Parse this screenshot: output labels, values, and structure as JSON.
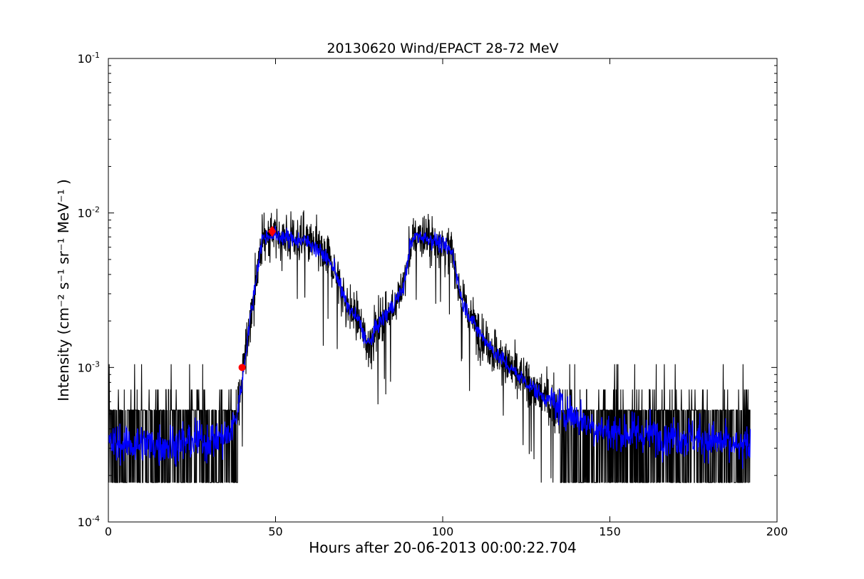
{
  "chart_data": {
    "type": "line",
    "title": "20130620 Wind/EPACT 28-72 MeV",
    "xlabel": "Hours after 20-06-2013 00:00:22.704",
    "ylabel": "Intensity (cm⁻² s⁻¹ sr⁻¹ MeV⁻¹ )",
    "xlim": [
      0,
      200
    ],
    "ylim": [
      0.0001,
      0.1
    ],
    "yscale": "log",
    "x_ticks": [
      {
        "value": 0,
        "label": "0"
      },
      {
        "value": 50,
        "label": "50"
      },
      {
        "value": 100,
        "label": "100"
      },
      {
        "value": 150,
        "label": "150"
      },
      {
        "value": 200,
        "label": "200"
      }
    ],
    "y_ticks": [
      {
        "value": 0.0001,
        "base": "10",
        "exp": "-4"
      },
      {
        "value": 0.001,
        "base": "10",
        "exp": "-3"
      },
      {
        "value": 0.01,
        "base": "10",
        "exp": "-2"
      },
      {
        "value": 0.1,
        "base": "10",
        "exp": "-1"
      }
    ],
    "grid": false,
    "series": [
      {
        "color": "#000000",
        "style": "noisy raw intensity",
        "x": [
          0,
          10,
          20,
          24,
          30,
          36,
          38,
          40,
          41,
          42,
          43,
          44,
          45,
          46,
          48,
          50,
          55,
          60,
          65,
          68,
          70,
          72,
          75,
          77,
          78,
          80,
          83,
          85,
          88,
          89,
          90,
          92,
          95,
          98,
          100,
          103,
          104,
          105,
          106,
          108,
          110,
          115,
          120,
          125,
          130,
          135,
          140,
          145,
          150,
          160,
          170,
          180,
          185,
          188,
          190,
          192
        ],
        "y": [
          0.00032,
          0.00032,
          0.00032,
          0.00033,
          0.00034,
          0.00036,
          0.00045,
          0.0008,
          0.0012,
          0.0018,
          0.0025,
          0.0035,
          0.005,
          0.0068,
          0.0072,
          0.0072,
          0.0068,
          0.0065,
          0.0052,
          0.0042,
          0.003,
          0.0024,
          0.002,
          0.0015,
          0.0014,
          0.0018,
          0.0022,
          0.0025,
          0.0032,
          0.004,
          0.0058,
          0.0072,
          0.0069,
          0.0066,
          0.0062,
          0.0055,
          0.0042,
          0.0032,
          0.0026,
          0.0022,
          0.0018,
          0.0013,
          0.001,
          0.0008,
          0.00065,
          0.00055,
          0.00048,
          0.00042,
          0.00038,
          0.00037,
          0.00036,
          0.00034,
          0.00032,
          0.0003,
          0.0003,
          0.00031
        ]
      },
      {
        "color": "#0000ff",
        "style": "smoothed intensity",
        "x": [
          0,
          10,
          20,
          24,
          30,
          36,
          38,
          40,
          41,
          42,
          43,
          44,
          45,
          46,
          48,
          50,
          55,
          60,
          65,
          68,
          70,
          72,
          75,
          77,
          78,
          80,
          83,
          85,
          88,
          89,
          90,
          92,
          95,
          98,
          100,
          103,
          104,
          105,
          106,
          108,
          110,
          115,
          120,
          125,
          130,
          135,
          140,
          145,
          150,
          160,
          170,
          180,
          185,
          188,
          190,
          192
        ],
        "y": [
          0.00032,
          0.00032,
          0.00032,
          0.00033,
          0.00034,
          0.00036,
          0.00045,
          0.0008,
          0.0012,
          0.0018,
          0.0025,
          0.0035,
          0.005,
          0.0068,
          0.0072,
          0.0072,
          0.0068,
          0.0065,
          0.0052,
          0.0042,
          0.003,
          0.0024,
          0.002,
          0.0015,
          0.0014,
          0.0018,
          0.0022,
          0.0025,
          0.0032,
          0.004,
          0.0058,
          0.0072,
          0.0069,
          0.0066,
          0.0062,
          0.0055,
          0.0042,
          0.0032,
          0.0026,
          0.0022,
          0.0018,
          0.0013,
          0.001,
          0.0008,
          0.00065,
          0.00055,
          0.00048,
          0.00042,
          0.00038,
          0.00037,
          0.00036,
          0.00034,
          0.00032,
          0.0003,
          0.0003,
          0.00031
        ]
      }
    ],
    "markers": [
      {
        "x": 40,
        "y": 0.001,
        "color": "#ff0000",
        "shape": "circle"
      },
      {
        "x": 49,
        "y": 0.0076,
        "color": "#ff0000",
        "shape": "diamond"
      }
    ]
  }
}
